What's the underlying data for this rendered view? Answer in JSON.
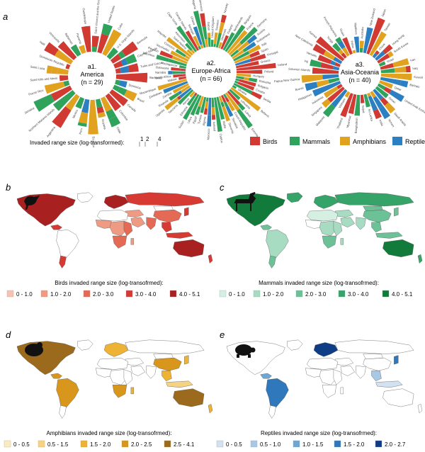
{
  "panel_letters": {
    "a": "a",
    "b": "b",
    "c": "c",
    "d": "d",
    "e": "e"
  },
  "colors": {
    "Birds": "#d03a33",
    "Mammals": "#2fa35c",
    "Amphibians": "#e0a21f",
    "Reptiles": "#2c7fc0",
    "land_none": "#ffffff",
    "border": "#555555"
  },
  "circular": {
    "scale_label": "Invaded range size (log-transformed):",
    "scale_ticks": [
      "1",
      "2",
      "4"
    ],
    "legend": [
      "Birds",
      "Mammals",
      "Amphibians",
      "Reptiles"
    ],
    "panels": [
      {
        "title": "a1.",
        "region": "America",
        "n": "(n = 29)",
        "labels": [
          "Saint Vincent and the Grenadines",
          "United States",
          "Cuba",
          "U.S. Virgin Islands",
          "Bermuda",
          "Cayman Islands",
          "Turks and Caicos",
          "Barbados",
          "Dominica",
          "Brazil",
          "Canada",
          "Colombia",
          "Chile",
          "Guyana",
          "Ecuador",
          "Peru",
          "Mexico",
          "Argentina",
          "Northern Mariana Islands",
          "Jamaica",
          "Puerto Rico",
          "Saint Kitts and Nevis",
          "Saint Lucia",
          "Dominican Republic",
          "Haiti",
          "Venezuela",
          "Bahamas",
          "Panama",
          "Guadeloupe"
        ]
      },
      {
        "title": "a2.",
        "region": "Europe-Africa",
        "n": "(n = 66)",
        "labels": [
          "United Kingdom",
          "Sweden",
          "Norway",
          "Denmark",
          "Finland",
          "Netherlands",
          "Belgium",
          "France",
          "Germany",
          "Austria",
          "Switzerland",
          "Italy",
          "Spain",
          "Portugal",
          "Greece",
          "Ireland",
          "Poland",
          "Hungary",
          "Romania",
          "Bulgaria",
          "Croatia",
          "Serbia",
          "Ukraine",
          "Belarus",
          "Lithuania",
          "Latvia",
          "Estonia",
          "Czech Republic",
          "Slovakia",
          "Slovenia",
          "Malta",
          "Cyprus",
          "Iceland",
          "Morocco",
          "Algeria",
          "Tunisia",
          "Egypt",
          "Libya",
          "Sudan",
          "Ethiopia",
          "Kenya",
          "Tanzania",
          "Uganda",
          "Rwanda",
          "Zambia",
          "Zimbabwe",
          "Mozambique",
          "Malawi",
          "South Africa",
          "Namibia",
          "Botswana",
          "Madagascar",
          "Mauritius",
          "Reunion",
          "Seychelles",
          "Comoros",
          "Mayotte",
          "Saint Helena",
          "Ascension",
          "Cape Verde",
          "Canary Islands",
          "Senegal",
          "Ghana",
          "Nigeria",
          "Cameroon",
          "Gabon"
        ]
      },
      {
        "title": "a3.",
        "region": "Asia-Oceania",
        "n": "(n = 40)",
        "labels": [
          "Australia",
          "New Zealand",
          "Japan",
          "Taiwan",
          "China",
          "Hong Kong",
          "South Korea",
          "Israel",
          "Iran",
          "Iraq",
          "Kuwait",
          "Bahrain",
          "Qatar",
          "United Arab Emirates",
          "Oman",
          "Saudi Arabia",
          "Yemen",
          "India",
          "Sri Lanka",
          "Nepal",
          "Bangladesh",
          "Myanmar",
          "Thailand",
          "Vietnam",
          "Malaysia",
          "Singapore",
          "Indonesia",
          "Philippines",
          "Brunei",
          "Papua New Guinea",
          "Solomon Islands",
          "Fiji",
          "Vanuatu",
          "New Caledonia",
          "Samoa",
          "Tonga",
          "French Polynesia",
          "Guam",
          "Palau",
          "Maldives"
        ]
      }
    ]
  },
  "maps": [
    {
      "key": "b",
      "taxon": "Birds",
      "animal": "bird-silhouette-icon",
      "legend_title": "Birds invaded range size (log-transofrmed):",
      "classes": [
        {
          "label": "0 - 1.0",
          "color": "#f5c3b2"
        },
        {
          "label": "1.0 - 2.0",
          "color": "#ef9a83"
        },
        {
          "label": "2.0 - 3.0",
          "color": "#e56a55"
        },
        {
          "label": "3.0 - 4.0",
          "color": "#d63a33"
        },
        {
          "label": "4.0 - 5.1",
          "color": "#a8201f"
        }
      ],
      "regions": {
        "north_america": 4,
        "greenland": -1,
        "south_america": -1,
        "florida_carib": 3,
        "chile_arg": 3,
        "europe": 4,
        "russia": 3,
        "mongolia": -1,
        "china": 2,
        "middle_east": 1,
        "arabia": 1,
        "india": 2,
        "north_africa": -1,
        "west_africa": 1,
        "central_africa": 1,
        "east_africa": 2,
        "south_africa": 2,
        "madagascar": 1,
        "se_asia": 3,
        "indonesia": 3,
        "australia": 4,
        "nz": 3,
        "japan": 3
      }
    },
    {
      "key": "c",
      "taxon": "Mammals",
      "animal": "deer-silhouette-icon",
      "legend_title": "Mammals invaded range size (log-transofrmed):",
      "classes": [
        {
          "label": "0 - 1.0",
          "color": "#d6efe3"
        },
        {
          "label": "1.0 - 2.0",
          "color": "#a7dcc3"
        },
        {
          "label": "2.0 - 3.0",
          "color": "#6cc196"
        },
        {
          "label": "3.0 - 4.0",
          "color": "#36a468"
        },
        {
          "label": "4.0 - 5.1",
          "color": "#127a3a"
        }
      ],
      "regions": {
        "north_america": 4,
        "greenland": 3,
        "south_america": 1,
        "florida_carib": 2,
        "chile_arg": 2,
        "europe": 3,
        "russia": 3,
        "mongolia": 2,
        "china": 2,
        "middle_east": 1,
        "arabia": 1,
        "india": 1,
        "north_africa": 0,
        "west_africa": -1,
        "central_africa": 1,
        "east_africa": 1,
        "south_africa": 2,
        "madagascar": 1,
        "se_asia": 2,
        "indonesia": 2,
        "australia": 4,
        "nz": 3,
        "japan": 2
      }
    },
    {
      "key": "d",
      "taxon": "Amphibians",
      "animal": "frog-silhouette-icon",
      "legend_title": "Amphibians invaded range size (log-transofrmed):",
      "classes": [
        {
          "label": "0 - 0.5",
          "color": "#fbebc1"
        },
        {
          "label": "0.5 - 1.5",
          "color": "#f6d283"
        },
        {
          "label": "1.5 - 2.0",
          "color": "#eeb235"
        },
        {
          "label": "2.0 - 2.5",
          "color": "#d9961c"
        },
        {
          "label": "2.5 - 4.1",
          "color": "#9c6a1c"
        }
      ],
      "regions": {
        "north_america": 4,
        "greenland": -1,
        "south_america": 3,
        "florida_carib": 3,
        "chile_arg": -1,
        "europe": 2,
        "russia": -1,
        "mongolia": -1,
        "china": 3,
        "middle_east": -1,
        "arabia": -1,
        "india": -1,
        "north_africa": -1,
        "west_africa": -1,
        "central_africa": -1,
        "east_africa": -1,
        "south_africa": 3,
        "madagascar": 2,
        "se_asia": 2,
        "indonesia": 1,
        "australia": 4,
        "nz": 2,
        "japan": 2
      }
    },
    {
      "key": "e",
      "taxon": "Reptiles",
      "animal": "turtle-silhouette-icon",
      "legend_title": "Reptiles invaded range size (log-transofrmed):",
      "classes": [
        {
          "label": "0 - 0.5",
          "color": "#d3e2f0"
        },
        {
          "label": "0.5 - 1.0",
          "color": "#a9c8e4"
        },
        {
          "label": "1.0 - 1.5",
          "color": "#6ea6d4"
        },
        {
          "label": "1.5 - 2.0",
          "color": "#2f78bc"
        },
        {
          "label": "2.0 - 2.7",
          "color": "#0f3d85"
        }
      ],
      "regions": {
        "north_america": -1,
        "greenland": -1,
        "south_america": 3,
        "florida_carib": 2,
        "chile_arg": -1,
        "europe": 4,
        "russia": -1,
        "mongolia": -1,
        "china": -1,
        "middle_east": -1,
        "arabia": -1,
        "india": -1,
        "north_africa": -1,
        "west_africa": -1,
        "central_africa": -1,
        "east_africa": -1,
        "south_africa": -1,
        "madagascar": -1,
        "se_asia": 1,
        "indonesia": 0,
        "australia": -1,
        "nz": -1,
        "japan": 3
      }
    }
  ],
  "chart_data": [
    {
      "type": "bar",
      "title": "a1. America (n = 29)",
      "ylabel": "Invaded range size (log-transformed)",
      "series": [
        {
          "name": "Birds"
        },
        {
          "name": "Mammals"
        },
        {
          "name": "Amphibians"
        },
        {
          "name": "Reptiles"
        }
      ],
      "n": 29
    },
    {
      "type": "bar",
      "title": "a2. Europe-Africa (n = 66)",
      "ylabel": "Invaded range size (log-transformed)",
      "series": [
        {
          "name": "Birds"
        },
        {
          "name": "Mammals"
        },
        {
          "name": "Amphibians"
        },
        {
          "name": "Reptiles"
        }
      ],
      "n": 66
    },
    {
      "type": "bar",
      "title": "a3. Asia-Oceania (n = 40)",
      "ylabel": "Invaded range size (log-transformed)",
      "series": [
        {
          "name": "Birds"
        },
        {
          "name": "Mammals"
        },
        {
          "name": "Amphibians"
        },
        {
          "name": "Reptiles"
        }
      ],
      "n": 40
    }
  ]
}
